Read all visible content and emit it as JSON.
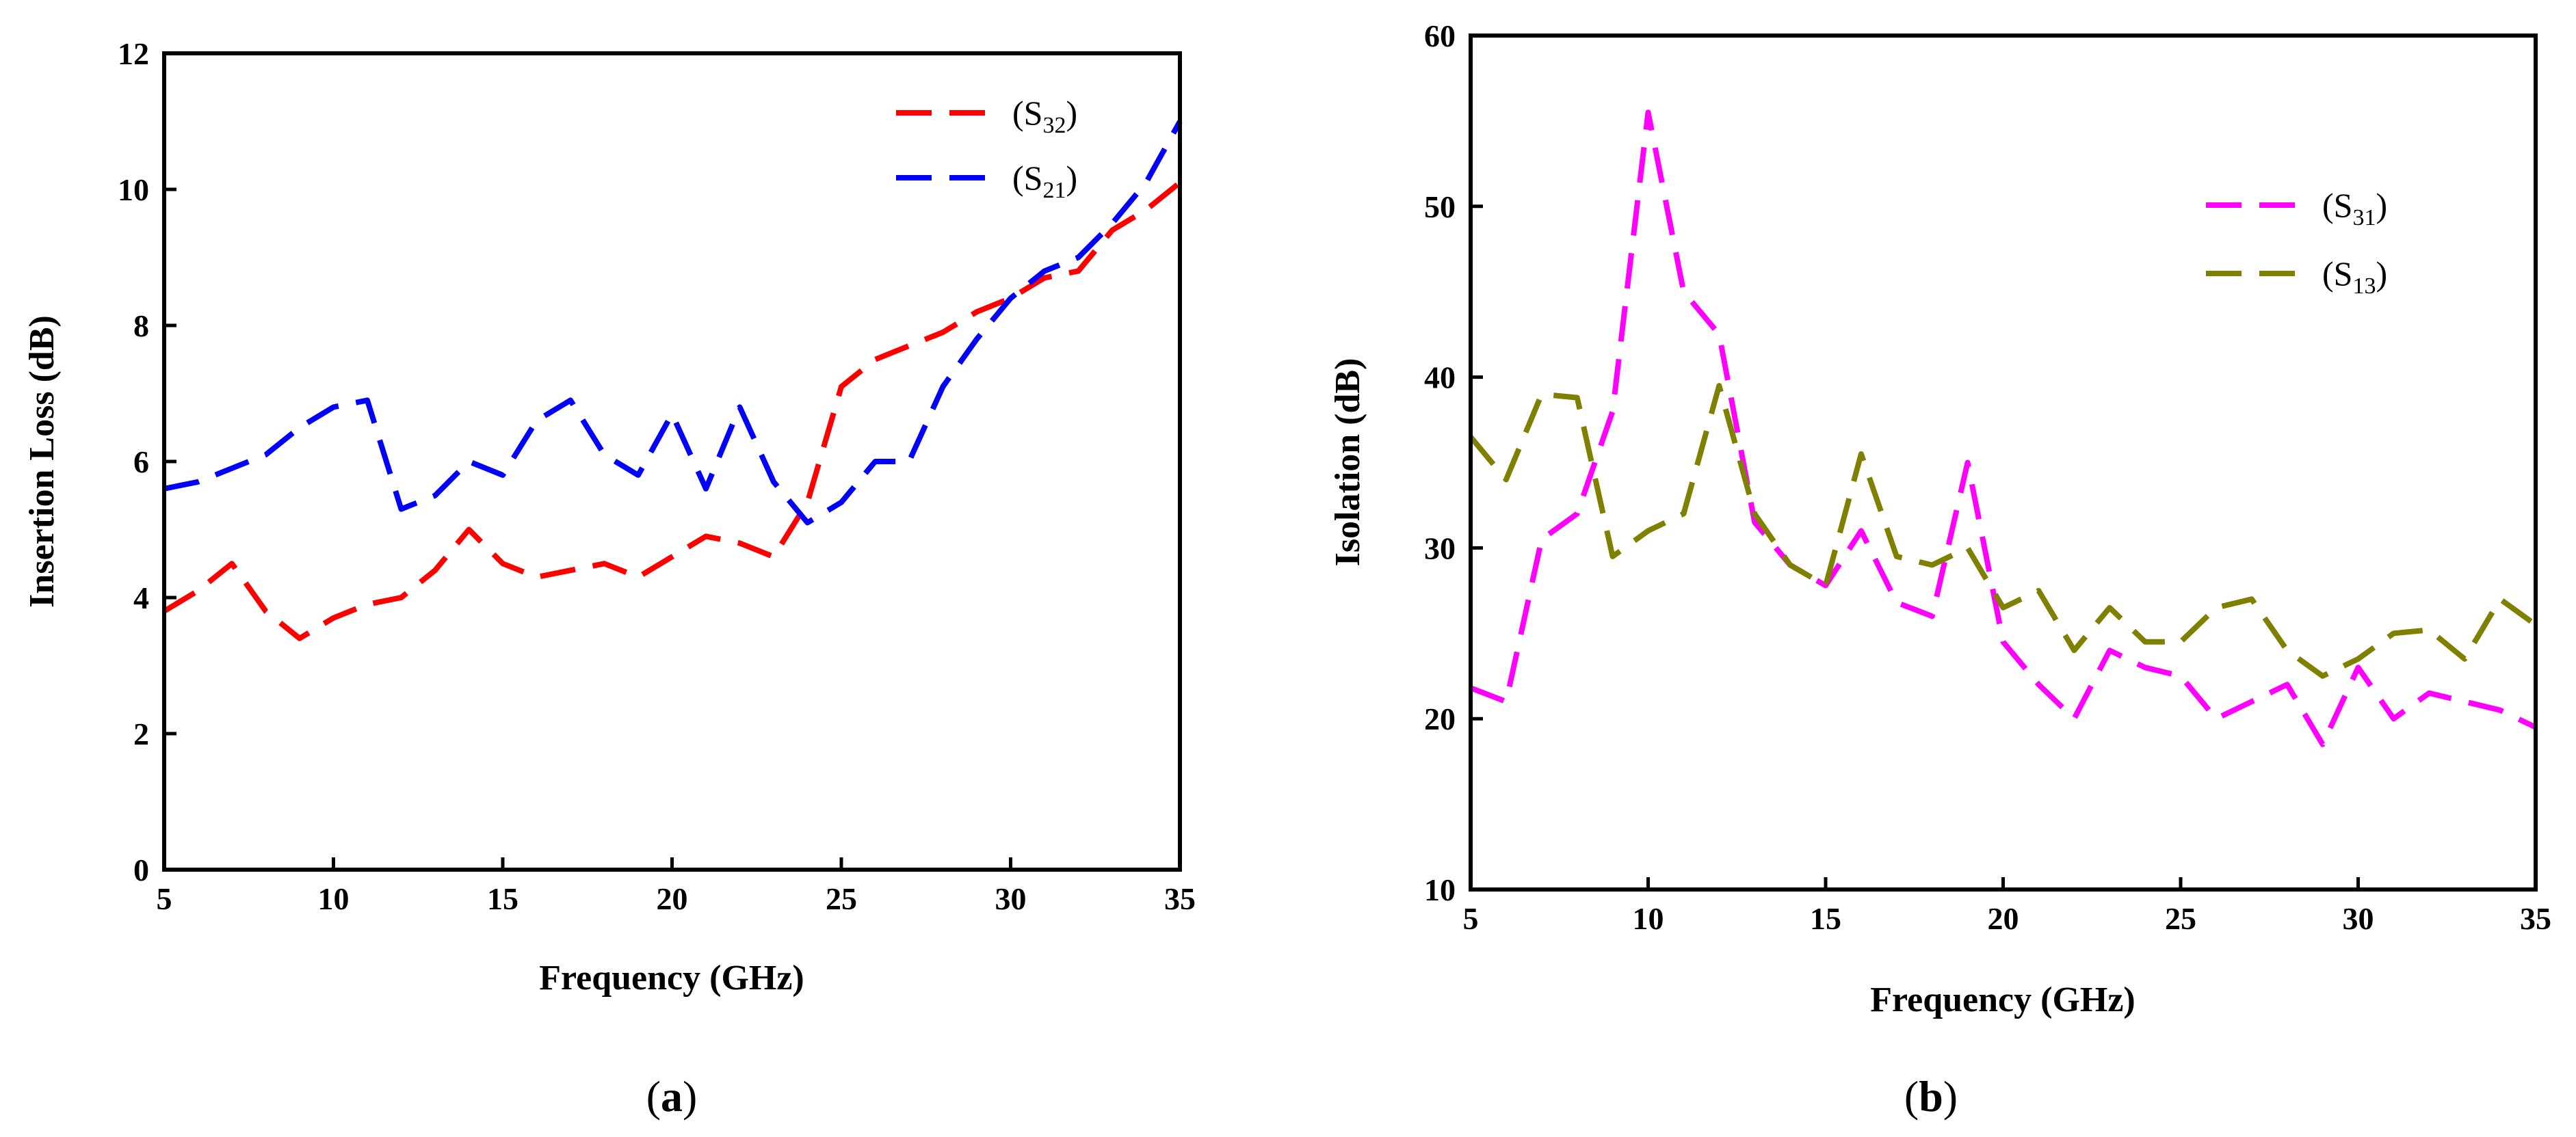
{
  "chart_data": [
    {
      "type": "line",
      "panel_label": "a",
      "xlabel": "Frequency (GHz)",
      "ylabel": "Insertion Loss (dB)",
      "xlim": [
        5,
        35
      ],
      "ylim": [
        0,
        12
      ],
      "xticks": [
        5,
        10,
        15,
        20,
        25,
        30,
        35
      ],
      "yticks": [
        0,
        2,
        4,
        6,
        8,
        10,
        12
      ],
      "legend_position": "top-right",
      "x": [
        5,
        6,
        7,
        8,
        9,
        10,
        11,
        12,
        13,
        14,
        15,
        16,
        17,
        18,
        19,
        20,
        21,
        22,
        23,
        24,
        25,
        26,
        27,
        28,
        29,
        30,
        31,
        32,
        33,
        34,
        35
      ],
      "series": [
        {
          "name": "S32",
          "legend": {
            "open": "(S",
            "sub": "32",
            "close": ")"
          },
          "color": "#ff0000",
          "values": [
            3.8,
            4.1,
            4.5,
            3.8,
            3.4,
            3.7,
            3.9,
            4.0,
            4.4,
            5.0,
            4.5,
            4.3,
            4.4,
            4.5,
            4.3,
            4.6,
            4.9,
            4.8,
            4.6,
            5.4,
            7.1,
            7.5,
            7.7,
            7.9,
            8.2,
            8.4,
            8.7,
            8.8,
            9.4,
            9.7,
            10.1
          ]
        },
        {
          "name": "S21",
          "legend": {
            "open": "(S",
            "sub": "21",
            "close": ")"
          },
          "color": "#0000ff",
          "values": [
            5.6,
            5.7,
            5.9,
            6.1,
            6.5,
            6.8,
            6.9,
            5.3,
            5.5,
            6.0,
            5.8,
            6.6,
            6.9,
            6.1,
            5.8,
            6.7,
            5.6,
            6.8,
            5.7,
            5.1,
            5.4,
            6.0,
            6.0,
            7.1,
            7.8,
            8.4,
            8.8,
            9.0,
            9.5,
            10.1,
            11.0
          ]
        }
      ]
    },
    {
      "type": "line",
      "panel_label": "b",
      "xlabel": "Frequency (GHz)",
      "ylabel": "Isolation (dB)",
      "xlim": [
        5,
        35
      ],
      "ylim": [
        10,
        60
      ],
      "xticks": [
        5,
        10,
        15,
        20,
        25,
        30,
        35
      ],
      "yticks": [
        10,
        20,
        30,
        40,
        50,
        60
      ],
      "legend_position": "upper-right",
      "x": [
        5,
        6,
        7,
        8,
        9,
        10,
        11,
        12,
        13,
        14,
        15,
        16,
        17,
        18,
        19,
        20,
        21,
        22,
        23,
        24,
        25,
        26,
        27,
        28,
        29,
        30,
        31,
        32,
        33,
        34,
        35
      ],
      "series": [
        {
          "name": "S31",
          "legend": {
            "open": "(S",
            "sub": "31",
            "close": ")"
          },
          "color": "#ff00ff",
          "values": [
            21.8,
            21.0,
            30.5,
            32.0,
            38.0,
            55.5,
            45.0,
            42.5,
            31.5,
            29.0,
            27.8,
            31.0,
            26.8,
            26.0,
            35.0,
            24.5,
            22.0,
            20.0,
            24.0,
            23.0,
            22.5,
            20.0,
            21.0,
            22.0,
            18.5,
            23.0,
            20.0,
            21.5,
            21.0,
            20.5,
            19.5
          ]
        },
        {
          "name": "S13",
          "legend": {
            "open": "(S",
            "sub": "13",
            "close": ")"
          },
          "color": "#808000",
          "values": [
            36.5,
            34.0,
            39.0,
            38.8,
            29.5,
            31.0,
            32.0,
            39.5,
            32.0,
            29.0,
            27.8,
            35.5,
            29.5,
            29.0,
            30.0,
            26.5,
            27.5,
            24.0,
            26.5,
            24.5,
            24.5,
            26.5,
            27.0,
            24.0,
            22.5,
            23.5,
            25.0,
            25.2,
            23.5,
            27.0,
            25.5
          ]
        }
      ]
    }
  ]
}
